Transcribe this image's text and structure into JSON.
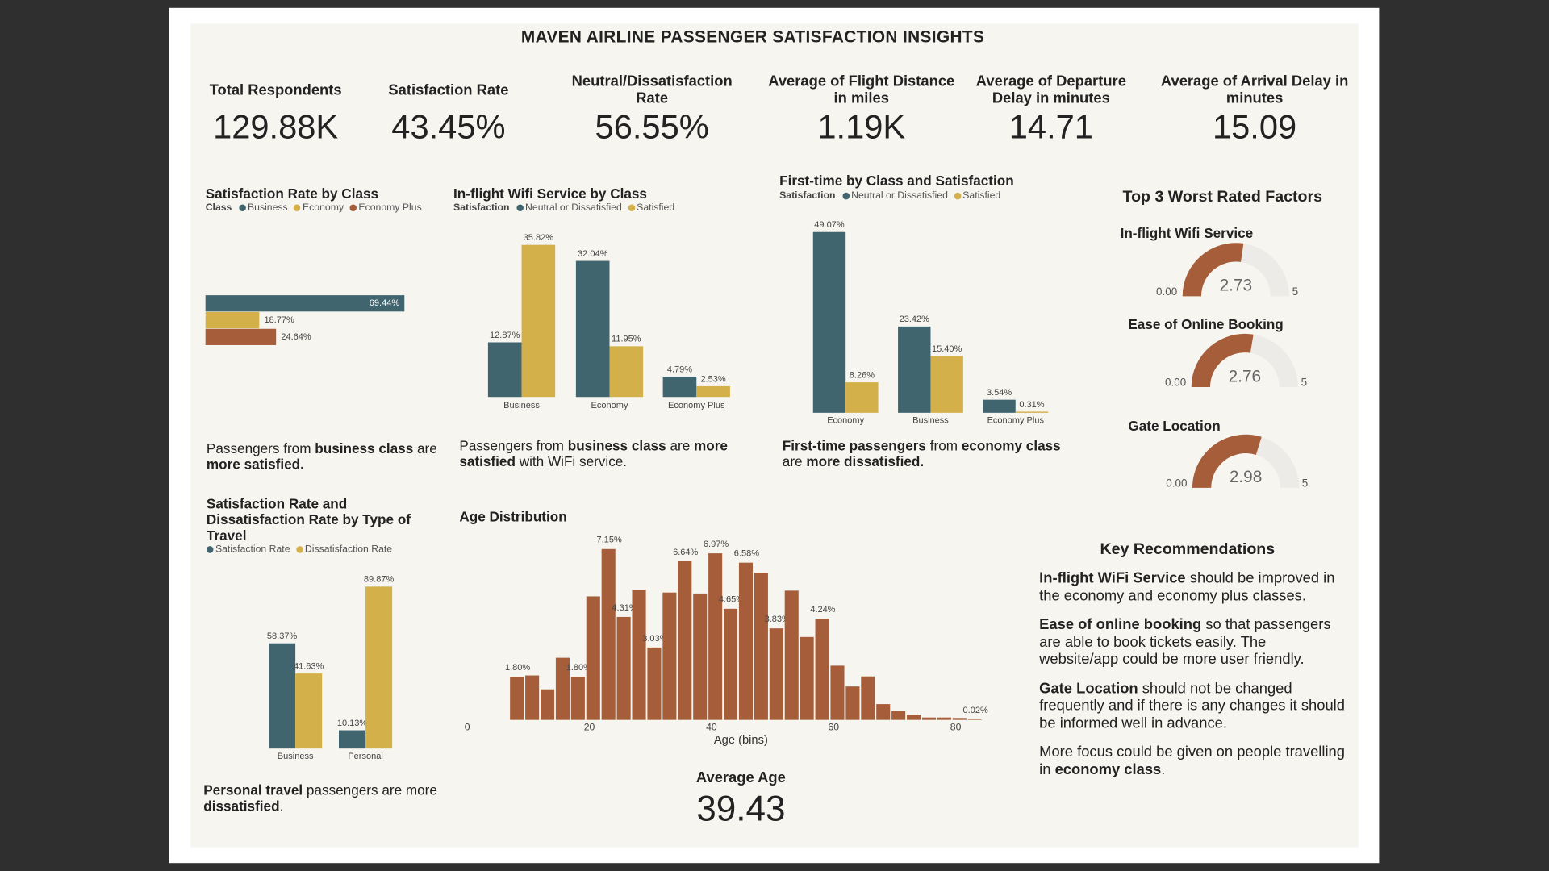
{
  "header": {
    "title": "MAVEN AIRLINE PASSENGER SATISFACTION INSIGHTS"
  },
  "kpis": [
    {
      "label": "Total Respondents",
      "value": "129.88K"
    },
    {
      "label": "Satisfaction Rate",
      "value": "43.45%"
    },
    {
      "label": "Neutral/Dissatisfaction Rate",
      "value": "56.55%"
    },
    {
      "label": "Average of Flight Distance in miles",
      "value": "1.19K"
    },
    {
      "label": "Average of Departure Delay in minutes",
      "value": "14.71"
    },
    {
      "label": "Average of Arrival Delay in minutes",
      "value": "15.09"
    }
  ],
  "chart_data": [
    {
      "type": "hbar",
      "title": "Satisfaction Rate by Class",
      "legend_title": "Class",
      "categories": [
        "Business",
        "Economy",
        "Economy Plus"
      ],
      "values": [
        69.44,
        18.77,
        24.64
      ],
      "value_labels": [
        "69.44%",
        "18.77%",
        "24.64%"
      ],
      "colors": [
        "#41656f",
        "#d4b04a",
        "#a65e3a"
      ]
    },
    {
      "type": "grouped_bar",
      "title": "In-flight Wifi Service by Class",
      "legend_title": "Satisfaction",
      "categories": [
        "Business",
        "Economy",
        "Economy Plus"
      ],
      "series": [
        {
          "name": "Neutral or Dissatisfied",
          "color": "#41656f",
          "values": [
            12.87,
            32.04,
            4.79
          ],
          "value_labels": [
            "12.87%",
            "32.04%",
            "4.79%"
          ]
        },
        {
          "name": "Satisfied",
          "color": "#d4b04a",
          "values": [
            35.82,
            11.95,
            2.53
          ],
          "value_labels": [
            "35.82%",
            "11.95%",
            "2.53%"
          ]
        }
      ]
    },
    {
      "type": "grouped_bar",
      "title": "First-time by Class and Satisfaction",
      "legend_title": "Satisfaction",
      "categories": [
        "Economy",
        "Business",
        "Economy Plus"
      ],
      "series": [
        {
          "name": "Neutral or Dissatisfied",
          "color": "#41656f",
          "values": [
            49.07,
            23.42,
            3.54
          ],
          "value_labels": [
            "49.07%",
            "23.42%",
            "3.54%"
          ]
        },
        {
          "name": "Satisfied",
          "color": "#d4b04a",
          "values": [
            8.26,
            15.4,
            0.31
          ],
          "value_labels": [
            "8.26%",
            "15.40%",
            "0.31%"
          ]
        }
      ]
    },
    {
      "type": "grouped_bar",
      "title": "Satisfaction Rate and Dissatisfaction Rate by Type of Travel",
      "categories": [
        "Business",
        "Personal"
      ],
      "series": [
        {
          "name": "Satisfaction Rate",
          "color": "#41656f",
          "values": [
            58.37,
            10.13
          ],
          "value_labels": [
            "58.37%",
            "10.13%"
          ]
        },
        {
          "name": "Dissatisfaction Rate",
          "color": "#d4b04a",
          "values": [
            41.63,
            89.87
          ],
          "value_labels": [
            "41.63%",
            "89.87%"
          ]
        }
      ]
    },
    {
      "type": "histogram",
      "title": "Age Distribution",
      "x_label": "Age (bins)",
      "color": "#a65e3a",
      "bins": [
        7,
        9.5,
        12,
        14.5,
        17,
        19.5,
        22,
        24.5,
        27,
        29.5,
        32,
        34.5,
        37,
        39.5,
        42,
        44.5,
        47,
        49.5,
        52,
        54.5,
        57,
        59.5,
        62,
        64.5,
        67,
        69.5,
        72,
        74.5,
        77,
        79.5,
        82,
        84.5
      ],
      "values": [
        1.8,
        1.86,
        1.28,
        2.6,
        1.8,
        5.17,
        7.15,
        4.31,
        5.45,
        3.03,
        5.33,
        6.64,
        5.29,
        6.97,
        4.65,
        6.58,
        6.16,
        3.83,
        5.41,
        3.47,
        4.24,
        2.27,
        1.4,
        1.82,
        0.66,
        0.37,
        0.21,
        0.1,
        0.1,
        0.08,
        0.02
      ],
      "value_labels": [
        "1.80%",
        null,
        null,
        null,
        "1.80%",
        null,
        "7.15%",
        "4.31%",
        null,
        "3.03%",
        null,
        "6.64%",
        null,
        "6.97%",
        "4.65%",
        "6.58%",
        null,
        "3.83%",
        null,
        null,
        "4.24%",
        null,
        null,
        null,
        null,
        null,
        null,
        null,
        null,
        null,
        "0.02%"
      ],
      "xlim": [
        0,
        85
      ],
      "xticks": [
        0,
        20,
        40,
        60,
        80
      ]
    },
    {
      "type": "gauge",
      "title": "In-flight Wifi Service",
      "value": 2.73,
      "color": "#a65e3a",
      "ylim": [
        0,
        5
      ],
      "yticks": [
        {
          "value": 0,
          "label": "0.00"
        },
        5
      ]
    },
    {
      "type": "gauge",
      "title": "Ease of Online Booking",
      "value": 2.76,
      "color": "#a65e3a",
      "ylim": [
        0,
        5
      ],
      "yticks": [
        {
          "value": 0,
          "label": "0.00"
        },
        5
      ]
    },
    {
      "type": "gauge",
      "title": "Gate Location",
      "value": 2.98,
      "color": "#a65e3a",
      "ylim": [
        0,
        5
      ],
      "yticks": [
        {
          "value": 0,
          "label": "0.00"
        },
        5
      ]
    }
  ],
  "gauges_title": "Top 3 Worst Rated Factors",
  "notes": [
    [
      {
        "text": "Passengers from "
      },
      {
        "text": "business class",
        "bold": true
      },
      {
        "text": " are "
      },
      {
        "text": "more satisfied.",
        "bold": true
      }
    ],
    [
      {
        "text": "Passengers from "
      },
      {
        "text": "business class",
        "bold": true
      },
      {
        "text": " are "
      },
      {
        "text": "more satisfied",
        "bold": true
      },
      {
        "text": " with WiFi service."
      }
    ],
    [
      {
        "text": "First-time passengers",
        "bold": true
      },
      {
        "text": " from "
      },
      {
        "text": "economy class",
        "bold": true
      },
      {
        "text": " are "
      },
      {
        "text": "more dissatisfied.",
        "bold": true
      }
    ],
    [
      {
        "text": "Personal travel",
        "bold": true
      },
      {
        "text": " passengers are more "
      },
      {
        "text": "dissatisfied",
        "bold": true
      },
      {
        "text": "."
      }
    ]
  ],
  "average_age": {
    "label": "Average Age",
    "value": "39.43"
  },
  "recommendations": {
    "title": "Key Recommendations",
    "paragraphs": [
      [
        {
          "text": "In-flight WiFi Service",
          "bold": true
        },
        {
          "text": " should be improved in the economy and economy plus classes."
        }
      ],
      [
        {
          "text": "Ease of online booking",
          "bold": true
        },
        {
          "text": " so that passengers are able to book tickets easily. The website/app could be more user friendly."
        }
      ],
      [
        {
          "text": "Gate Location",
          "bold": true
        },
        {
          "text": " should not be changed frequently and if there is any changes it should be informed well in advance."
        }
      ],
      [
        {
          "text": "More focus could be given on people travelling in "
        },
        {
          "text": "economy class",
          "bold": true
        },
        {
          "text": "."
        }
      ]
    ]
  }
}
